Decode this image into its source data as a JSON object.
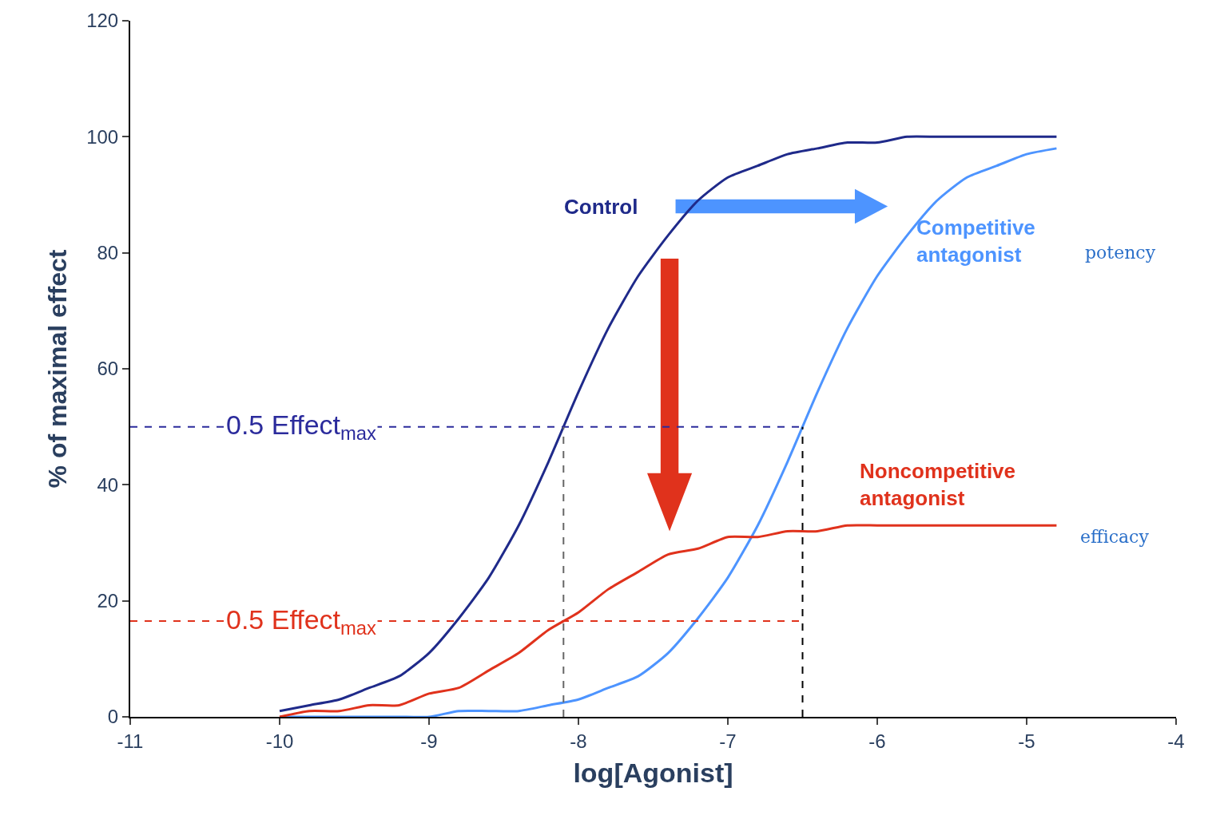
{
  "chart_data": {
    "type": "line",
    "xlabel": "log[Agonist]",
    "ylabel": "% of maximal effect",
    "x": [
      -10,
      -9.8,
      -9.6,
      -9.4,
      -9.2,
      -9,
      -8.8,
      -8.6,
      -8.4,
      -8.2,
      -8,
      -7.8,
      -7.6,
      -7.4,
      -7.2,
      -7,
      -6.8,
      -6.6,
      -6.4,
      -6.2,
      -6,
      -5.8,
      -5.6,
      -5.4,
      -5.2,
      -5,
      -4.8
    ],
    "series": [
      {
        "color": "#1f2a8a",
        "values": [
          1,
          2,
          3,
          5,
          7,
          11,
          17,
          24,
          33,
          44,
          56,
          67,
          76,
          83,
          89,
          93,
          95,
          97,
          98,
          99,
          99,
          100,
          100,
          100,
          100,
          100,
          100
        ]
      },
      {
        "color": "#4d94ff",
        "values": [
          0,
          0,
          0,
          0,
          0,
          0,
          1,
          1,
          1,
          2,
          3,
          5,
          7,
          11,
          17,
          24,
          33,
          44,
          56,
          67,
          76,
          83,
          89,
          93,
          95,
          97,
          98
        ]
      },
      {
        "color": "#e0321c",
        "values": [
          0,
          1,
          1,
          2,
          2,
          4,
          5,
          8,
          11,
          15,
          18,
          22,
          25,
          28,
          29,
          31,
          31,
          32,
          32,
          33,
          33,
          33,
          33,
          33,
          33,
          33,
          33
        ]
      }
    ],
    "xlim": [
      -11,
      -4
    ],
    "xticks": [
      -11,
      -10,
      -9,
      -8,
      -7,
      -6,
      -5,
      -4
    ],
    "ylim": [
      0,
      120
    ],
    "yticks": [
      0,
      20,
      40,
      60,
      80,
      100,
      120
    ],
    "ref_lines": [
      {
        "axis": "y",
        "value": 50,
        "label": "0.5 Effect$_{max}$",
        "color": "#2b2b9c",
        "line_style": "dashed"
      },
      {
        "axis": "y",
        "value": 16.5,
        "label": "0.5 Effect$_{max}$",
        "color": "#e0321c",
        "line_style": "dashed"
      },
      {
        "axis": "x",
        "value": -8.1,
        "color": "#666666",
        "line_style": "dashed"
      },
      {
        "axis": "x",
        "value": -6.5,
        "color": "#000000",
        "line_style": "dashed"
      }
    ],
    "annotations": [
      "Control",
      "Competitive\nantagonist",
      "Noncompetitive\nantagonist",
      "potency",
      "efficacy"
    ],
    "grid": false,
    "line_style": "solid",
    "marker": "none"
  }
}
